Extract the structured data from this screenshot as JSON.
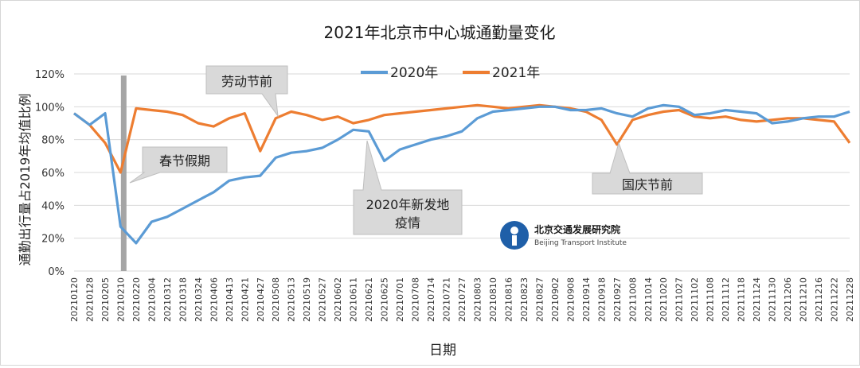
{
  "chart_data": {
    "type": "line",
    "title": "2021年北京市中心城通勤量变化",
    "xlabel": "日期",
    "ylabel": "通勤出行量占2019年均值比例",
    "ylim": [
      0,
      120
    ],
    "yticks": [
      0,
      20,
      40,
      60,
      80,
      100,
      120
    ],
    "ytick_labels": [
      "0%",
      "20%",
      "40%",
      "60%",
      "80%",
      "100%",
      "120%"
    ],
    "x_tick_labels": [
      "20210120",
      "20210128",
      "20210205",
      "20210210",
      "20210220",
      "20210304",
      "20210312",
      "20210318",
      "20210324",
      "20210406",
      "20210413",
      "20210421",
      "20210427",
      "20210508",
      "20210513",
      "20210519",
      "20210527",
      "20210602",
      "20210611",
      "20210621",
      "20210625",
      "20210701",
      "20210708",
      "20210714",
      "20210721",
      "20210727",
      "20210803",
      "20210810",
      "20210816",
      "20210823",
      "20210827",
      "20210902",
      "20210908",
      "20210914",
      "20210918",
      "20210927",
      "20211008",
      "20211014",
      "20211020",
      "20211027",
      "20211102",
      "20211108",
      "20211112",
      "20211118",
      "20211124",
      "20211130",
      "20211206",
      "20211210",
      "20211216",
      "20211222",
      "20211228"
    ],
    "legend": {
      "placement": "top-center",
      "entries": [
        "2020年",
        "2021年"
      ]
    },
    "colors": {
      "2020年": "#5B9BD5",
      "2021年": "#ED7D31",
      "festival_bar": "#A5A5A5",
      "callout_fill": "#D9D9D9",
      "callout_border": "#BFBFBF"
    },
    "series": [
      {
        "name": "2020年",
        "x_index": [
          0,
          1,
          2,
          3,
          4,
          5,
          6,
          7,
          8,
          9,
          10,
          11,
          12,
          13,
          14,
          15,
          16,
          17,
          18,
          19,
          20,
          21,
          22,
          23,
          24,
          25,
          26,
          27,
          28,
          29,
          30,
          31,
          32,
          33,
          34,
          35,
          36,
          37,
          38,
          39,
          40,
          41,
          42,
          43,
          44,
          45,
          46,
          47,
          48,
          49,
          50
        ],
        "values": [
          96,
          89,
          96,
          27,
          17,
          30,
          33,
          38,
          43,
          48,
          55,
          57,
          58,
          69,
          72,
          73,
          75,
          80,
          86,
          85,
          67,
          74,
          77,
          80,
          82,
          85,
          93,
          97,
          98,
          99,
          100,
          100,
          98,
          98,
          99,
          96,
          94,
          99,
          101,
          100,
          95,
          96,
          98,
          97,
          96,
          90,
          91,
          93,
          94,
          94,
          97
        ]
      },
      {
        "name": "2021年",
        "x_index": [
          0,
          1,
          2,
          3,
          4,
          5,
          6,
          7,
          8,
          9,
          10,
          11,
          12,
          13,
          14,
          15,
          16,
          17,
          18,
          19,
          20,
          21,
          22,
          23,
          24,
          25,
          26,
          27,
          28,
          29,
          30,
          31,
          32,
          33,
          34,
          35,
          36,
          37,
          38,
          39,
          40,
          41,
          42,
          43,
          44,
          45,
          46,
          47,
          48,
          49,
          50
        ],
        "values": [
          96,
          89,
          78,
          60,
          99,
          98,
          97,
          95,
          90,
          88,
          93,
          96,
          73,
          93,
          97,
          95,
          92,
          94,
          90,
          92,
          95,
          96,
          97,
          98,
          99,
          100,
          101,
          100,
          99,
          100,
          101,
          100,
          99,
          97,
          92,
          77,
          92,
          95,
          97,
          98,
          94,
          93,
          94,
          92,
          91,
          92,
          93,
          93,
          92,
          91,
          78
        ]
      }
    ],
    "annotations": [
      {
        "label": "劳动节前",
        "x_index": 12.4
      },
      {
        "label": "春节假期",
        "x_index": 3.2
      },
      {
        "label": "2020年新发地\n疫情",
        "x_index": 20
      },
      {
        "label": "国庆节前",
        "x_index": 35
      }
    ],
    "festival_bar_x_index": 3.2
  },
  "logo": {
    "cn": "北京交通发展研究院",
    "en": "Beijing Transport Institute"
  }
}
